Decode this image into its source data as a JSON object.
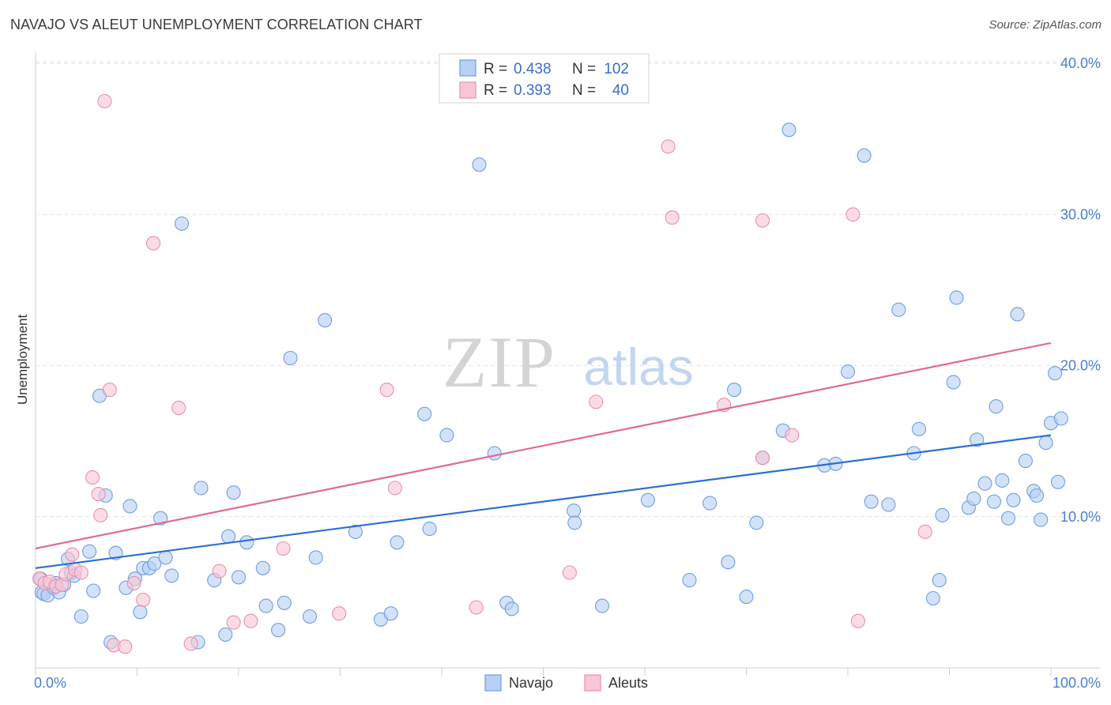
{
  "header": {
    "title": "NAVAJO VS ALEUT UNEMPLOYMENT CORRELATION CHART",
    "source": "Source: ZipAtlas.com"
  },
  "watermark": {
    "zip": "ZIP",
    "atlas": "atlas"
  },
  "colors": {
    "navajo_fill": "#b8d0f3",
    "navajo_stroke": "#6f9fe0",
    "navajo_line": "#2a6fd0",
    "aleut_fill": "#f8c6d5",
    "aleut_stroke": "#e890ad",
    "aleut_line": "#e06a96",
    "value_text": "#3a6fc8"
  },
  "legend": {
    "rows": [
      {
        "r_label": "R =",
        "r_value": "0.438",
        "n_label": "N =",
        "n_value": "102"
      },
      {
        "r_label": "R =",
        "r_value": "0.393",
        "n_label": "N =",
        "n_value": "40"
      }
    ]
  },
  "bottom_legend": {
    "items": [
      "Navajo",
      "Aleuts"
    ]
  },
  "chart_data": {
    "type": "scatter",
    "title": "NAVAJO VS ALEUT UNEMPLOYMENT CORRELATION CHART",
    "xlabel": "",
    "ylabel": "Unemployment",
    "xlim": [
      0,
      100
    ],
    "ylim": [
      0,
      40
    ],
    "x_tick_labels": [
      "0.0%",
      "100.0%"
    ],
    "y_ticks": [
      10,
      20,
      30,
      40
    ],
    "y_tick_labels": [
      "10.0%",
      "20.0%",
      "30.0%",
      "40.0%"
    ],
    "grid": true,
    "legend_position": "top-center",
    "series": [
      {
        "name": "Navajo",
        "r": 0.438,
        "n": 102,
        "trend": {
          "x": [
            0,
            100
          ],
          "y": [
            6.6,
            15.4
          ]
        },
        "points": [
          [
            0.5,
            5.9
          ],
          [
            0.6,
            5.0
          ],
          [
            0.8,
            4.9
          ],
          [
            1.2,
            4.8
          ],
          [
            1.8,
            5.3
          ],
          [
            2.0,
            5.6
          ],
          [
            2.3,
            5.0
          ],
          [
            2.8,
            5.5
          ],
          [
            3.2,
            7.2
          ],
          [
            3.5,
            6.3
          ],
          [
            3.8,
            6.1
          ],
          [
            4.5,
            3.4
          ],
          [
            5.3,
            7.7
          ],
          [
            5.7,
            5.1
          ],
          [
            6.3,
            18.0
          ],
          [
            6.9,
            11.4
          ],
          [
            7.4,
            1.7
          ],
          [
            7.9,
            7.6
          ],
          [
            8.9,
            5.3
          ],
          [
            9.3,
            10.7
          ],
          [
            9.8,
            5.9
          ],
          [
            10.3,
            3.7
          ],
          [
            10.6,
            6.6
          ],
          [
            11.2,
            6.6
          ],
          [
            11.7,
            6.9
          ],
          [
            12.3,
            9.9
          ],
          [
            12.8,
            7.3
          ],
          [
            13.4,
            6.1
          ],
          [
            14.4,
            29.4
          ],
          [
            16.0,
            1.7
          ],
          [
            16.3,
            11.9
          ],
          [
            17.6,
            5.8
          ],
          [
            18.7,
            2.2
          ],
          [
            19.0,
            8.7
          ],
          [
            19.5,
            11.6
          ],
          [
            20.0,
            6.0
          ],
          [
            20.8,
            8.3
          ],
          [
            22.4,
            6.6
          ],
          [
            22.7,
            4.1
          ],
          [
            23.9,
            2.5
          ],
          [
            24.5,
            4.3
          ],
          [
            25.1,
            20.5
          ],
          [
            27.0,
            3.4
          ],
          [
            27.6,
            7.3
          ],
          [
            28.5,
            23.0
          ],
          [
            31.5,
            9.0
          ],
          [
            34.0,
            3.2
          ],
          [
            35.0,
            3.6
          ],
          [
            35.6,
            8.3
          ],
          [
            38.3,
            16.8
          ],
          [
            38.8,
            9.2
          ],
          [
            40.5,
            15.4
          ],
          [
            43.7,
            33.3
          ],
          [
            45.2,
            14.2
          ],
          [
            46.4,
            4.3
          ],
          [
            46.9,
            3.9
          ],
          [
            53.0,
            10.4
          ],
          [
            53.1,
            9.6
          ],
          [
            55.8,
            4.1
          ],
          [
            60.3,
            11.1
          ],
          [
            64.4,
            5.8
          ],
          [
            66.4,
            10.9
          ],
          [
            68.2,
            7.0
          ],
          [
            68.8,
            18.4
          ],
          [
            70.0,
            4.7
          ],
          [
            71.0,
            9.6
          ],
          [
            71.6,
            13.9
          ],
          [
            73.6,
            15.7
          ],
          [
            74.2,
            35.6
          ],
          [
            77.7,
            13.4
          ],
          [
            78.8,
            13.5
          ],
          [
            80.0,
            19.6
          ],
          [
            81.6,
            33.9
          ],
          [
            82.3,
            11.0
          ],
          [
            84.0,
            10.8
          ],
          [
            85.0,
            23.7
          ],
          [
            86.5,
            14.2
          ],
          [
            87.0,
            15.8
          ],
          [
            88.4,
            4.6
          ],
          [
            89.0,
            5.8
          ],
          [
            89.3,
            10.1
          ],
          [
            90.4,
            18.9
          ],
          [
            90.7,
            24.5
          ],
          [
            91.9,
            10.6
          ],
          [
            92.4,
            11.2
          ],
          [
            92.7,
            15.1
          ],
          [
            93.5,
            12.2
          ],
          [
            94.4,
            11.0
          ],
          [
            94.6,
            17.3
          ],
          [
            95.2,
            12.4
          ],
          [
            95.8,
            9.9
          ],
          [
            96.3,
            11.1
          ],
          [
            96.7,
            23.4
          ],
          [
            97.5,
            13.7
          ],
          [
            98.3,
            11.7
          ],
          [
            98.6,
            11.4
          ],
          [
            99.0,
            9.8
          ],
          [
            99.5,
            14.9
          ],
          [
            100.0,
            16.2
          ],
          [
            100.4,
            19.5
          ],
          [
            100.7,
            12.3
          ],
          [
            101.0,
            16.5
          ]
        ]
      },
      {
        "name": "Aleuts",
        "r": 0.393,
        "n": 40,
        "trend": {
          "x": [
            0,
            100
          ],
          "y": [
            7.9,
            21.5
          ]
        },
        "points": [
          [
            0.4,
            5.9
          ],
          [
            0.9,
            5.6
          ],
          [
            1.4,
            5.7
          ],
          [
            2.0,
            5.4
          ],
          [
            2.6,
            5.5
          ],
          [
            3.0,
            6.2
          ],
          [
            3.6,
            7.5
          ],
          [
            3.9,
            6.5
          ],
          [
            4.5,
            6.3
          ],
          [
            5.6,
            12.6
          ],
          [
            6.2,
            11.5
          ],
          [
            6.4,
            10.1
          ],
          [
            6.8,
            37.5
          ],
          [
            7.3,
            18.4
          ],
          [
            7.7,
            1.5
          ],
          [
            8.8,
            1.4
          ],
          [
            9.7,
            5.6
          ],
          [
            10.6,
            4.5
          ],
          [
            11.6,
            28.1
          ],
          [
            14.1,
            17.2
          ],
          [
            15.3,
            1.6
          ],
          [
            18.1,
            6.4
          ],
          [
            19.5,
            3.0
          ],
          [
            21.2,
            3.1
          ],
          [
            24.4,
            7.9
          ],
          [
            29.9,
            3.6
          ],
          [
            34.6,
            18.4
          ],
          [
            35.4,
            11.9
          ],
          [
            43.4,
            4.0
          ],
          [
            52.6,
            6.3
          ],
          [
            55.2,
            17.6
          ],
          [
            62.3,
            34.5
          ],
          [
            62.7,
            29.8
          ],
          [
            67.8,
            17.4
          ],
          [
            71.6,
            29.6
          ],
          [
            71.6,
            13.9
          ],
          [
            74.5,
            15.4
          ],
          [
            80.5,
            30.0
          ],
          [
            81.0,
            3.1
          ],
          [
            87.6,
            9.0
          ]
        ]
      }
    ]
  }
}
